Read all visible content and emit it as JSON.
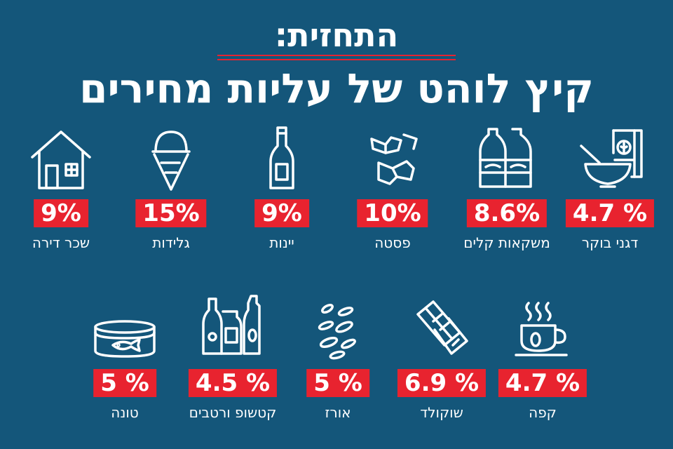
{
  "header": {
    "kicker": "התחזית:",
    "headline": "קיץ לוהט של עליות מחירים"
  },
  "colors": {
    "background": "#14567a",
    "accent_red": "#e8232f",
    "text": "#ffffff"
  },
  "items": [
    {
      "label": "דגני בוקר",
      "percent": "4.7 %",
      "icon": "cereal-icon"
    },
    {
      "label": "משקאות קלים",
      "percent": "8.6%",
      "icon": "soft-drinks-icon"
    },
    {
      "label": "פסטה",
      "percent": "10%",
      "icon": "pasta-icon"
    },
    {
      "label": "יינות",
      "percent": "9%",
      "icon": "wine-bottle-icon"
    },
    {
      "label": "גלידות",
      "percent": "15%",
      "icon": "ice-cream-icon"
    },
    {
      "label": "שכר דירה",
      "percent": "9%",
      "icon": "house-icon"
    },
    {
      "label": "קפה",
      "percent": "4.7 %",
      "icon": "coffee-cup-icon"
    },
    {
      "label": "שוקולד",
      "percent": "6.9 %",
      "icon": "chocolate-icon"
    },
    {
      "label": "אורז",
      "percent": "5 %",
      "icon": "rice-icon"
    },
    {
      "label": "קטשופ ורטבים",
      "percent": "4.5 %",
      "icon": "sauce-bottles-icon"
    },
    {
      "label": "טונה",
      "percent": "5 %",
      "icon": "tuna-can-icon"
    }
  ]
}
